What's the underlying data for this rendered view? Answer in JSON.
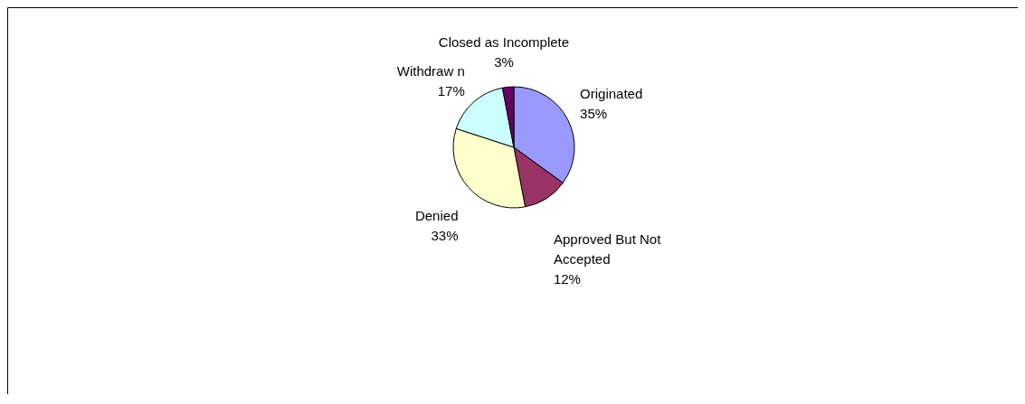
{
  "chart_data": {
    "type": "pie",
    "categories": [
      "Originated",
      "Approved But Not Accepted",
      "Denied",
      "Withdraw n",
      "Closed as Incomplete"
    ],
    "values": [
      35,
      12,
      33,
      17,
      3
    ],
    "value_labels": [
      "35%",
      "12%",
      "33%",
      "17%",
      "3%"
    ],
    "colors": [
      "#9999ff",
      "#993366",
      "#ffffcc",
      "#ccffff",
      "#660066"
    ]
  }
}
